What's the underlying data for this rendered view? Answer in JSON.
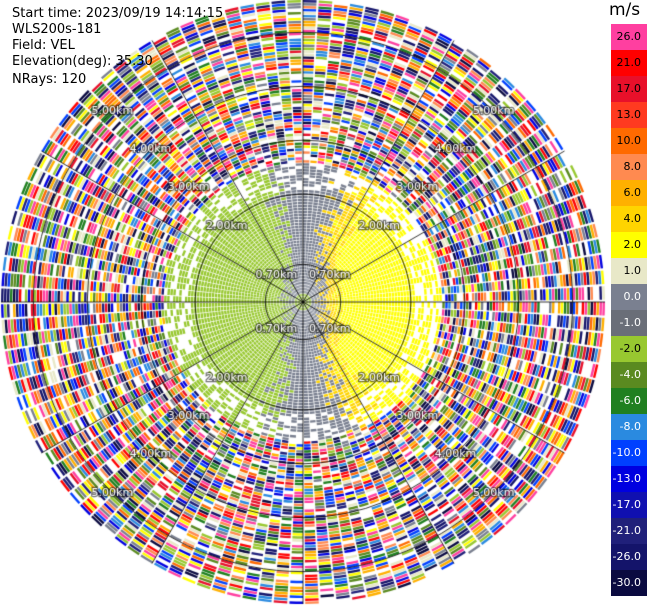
{
  "info": {
    "start_time": "Start time: 2023/09/19 14:14:15",
    "instrument": "WLS200s-181",
    "field": "Field: VEL",
    "elevation": "Elevation(deg): 35.30",
    "nrays": "NRays: 120"
  },
  "chart_data": {
    "type": "ppi-polar",
    "field": "VEL",
    "unit_label": "m/s",
    "range_rings_km": [
      0.7,
      2.0,
      3.0,
      4.0,
      5.0
    ],
    "range_ring_labels": [
      "0.70km",
      "2.00km",
      "3.00km",
      "4.00km",
      "5.00km"
    ],
    "nrays": 120,
    "max_range_km": 5.6,
    "colorbar": {
      "ticks": [
        "26.0",
        "21.0",
        "17.0",
        "13.0",
        "10.0",
        "8.0",
        "6.0",
        "4.0",
        "2.0",
        "1.0",
        "0.0",
        "-1.0",
        "-2.0",
        "-4.0",
        "-6.0",
        "-8.0",
        "-10.0",
        "-13.0",
        "-17.0",
        "-21.0",
        "-26.0",
        "-30.0"
      ],
      "colors": [
        "#ff3fa0",
        "#ff0000",
        "#e8102a",
        "#ff3a20",
        "#ff6a00",
        "#ff8a50",
        "#ffb000",
        "#ffd400",
        "#ffff00",
        "#e8e8c8",
        "#7a8090",
        "#6a6e78",
        "#98c830",
        "#5a8a20",
        "#208020",
        "#2a8ae0",
        "#0040ff",
        "#0000e0",
        "#1010b0",
        "#20207a",
        "#14146a",
        "#0a0a40"
      ]
    }
  }
}
